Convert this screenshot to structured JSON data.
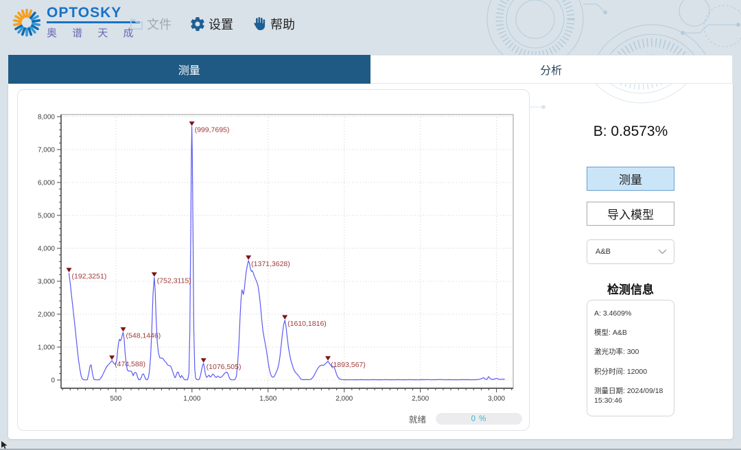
{
  "logo": {
    "brand": "OPTOSKY",
    "brand_cn": "奥 谱 天 成"
  },
  "toolbar": {
    "items": [
      {
        "label": "文件",
        "icon": "folder-icon",
        "disabled": true
      },
      {
        "label": "设置",
        "icon": "gear-icon",
        "disabled": false
      },
      {
        "label": "帮助",
        "icon": "hand-icon",
        "disabled": false
      }
    ]
  },
  "tabs": [
    {
      "label": "测量",
      "active": true
    },
    {
      "label": "分析",
      "active": false
    }
  ],
  "result": {
    "value": "B: 0.8573%"
  },
  "buttons": {
    "measure": "测量",
    "import_model": "导入模型"
  },
  "model_select": {
    "value": "A&B"
  },
  "info_panel": {
    "title": "检测信息",
    "items": [
      "A: 3.4609%",
      "模型: A&B",
      "激光功率: 300",
      "积分时间: 12000",
      "测量日期: 2024/09/18 15:30:46"
    ]
  },
  "status": {
    "ready": "就绪",
    "progress": "0 %"
  },
  "colors": {
    "accent_blue": "#1e5a83",
    "line": "#5a5af5",
    "marker": "#7e1416",
    "peak_label": "#a03a3a"
  },
  "chart_data": {
    "type": "line",
    "title": "",
    "xlabel": "",
    "ylabel": "",
    "xlim": [
      140,
      3110
    ],
    "ylim": [
      0,
      8000
    ],
    "x_ticks": [
      500,
      1000,
      1500,
      2000,
      2500,
      3000
    ],
    "y_ticks": [
      0,
      1000,
      2000,
      3000,
      4000,
      5000,
      6000,
      7000,
      8000
    ],
    "grid": true,
    "line_color": "#5a5af5",
    "marker_color": "#7e1416",
    "label_color": "#a03a3a",
    "peaks": [
      [
        192,
        3251
      ],
      [
        474,
        588
      ],
      [
        548,
        1446
      ],
      [
        752,
        3115
      ],
      [
        999,
        7695
      ],
      [
        1076,
        505
      ],
      [
        1371,
        3628
      ],
      [
        1610,
        1816
      ],
      [
        1893,
        567
      ]
    ],
    "points": [
      [
        192,
        3251
      ],
      [
        200,
        2950
      ],
      [
        210,
        2520
      ],
      [
        220,
        2100
      ],
      [
        232,
        1600
      ],
      [
        244,
        1050
      ],
      [
        255,
        600
      ],
      [
        265,
        300
      ],
      [
        272,
        120
      ],
      [
        280,
        30
      ],
      [
        290,
        8
      ],
      [
        300,
        5
      ],
      [
        312,
        8
      ],
      [
        322,
        200
      ],
      [
        330,
        430
      ],
      [
        338,
        460
      ],
      [
        346,
        200
      ],
      [
        354,
        30
      ],
      [
        365,
        8
      ],
      [
        378,
        5
      ],
      [
        392,
        10
      ],
      [
        405,
        80
      ],
      [
        418,
        200
      ],
      [
        430,
        320
      ],
      [
        442,
        420
      ],
      [
        452,
        470
      ],
      [
        462,
        520
      ],
      [
        474,
        588
      ],
      [
        482,
        540
      ],
      [
        490,
        490
      ],
      [
        498,
        470
      ],
      [
        506,
        600
      ],
      [
        512,
        900
      ],
      [
        518,
        1150
      ],
      [
        524,
        1240
      ],
      [
        530,
        1190
      ],
      [
        537,
        1260
      ],
      [
        543,
        1380
      ],
      [
        548,
        1446
      ],
      [
        554,
        1260
      ],
      [
        560,
        850
      ],
      [
        568,
        480
      ],
      [
        576,
        300
      ],
      [
        584,
        270
      ],
      [
        592,
        275
      ],
      [
        600,
        268
      ],
      [
        608,
        210
      ],
      [
        614,
        130
      ],
      [
        620,
        210
      ],
      [
        628,
        235
      ],
      [
        636,
        200
      ],
      [
        643,
        80
      ],
      [
        650,
        15
      ],
      [
        658,
        8
      ],
      [
        666,
        60
      ],
      [
        674,
        170
      ],
      [
        682,
        185
      ],
      [
        690,
        90
      ],
      [
        698,
        15
      ],
      [
        706,
        10
      ],
      [
        714,
        80
      ],
      [
        720,
        250
      ],
      [
        728,
        700
      ],
      [
        736,
        1500
      ],
      [
        744,
        2600
      ],
      [
        752,
        3115
      ],
      [
        758,
        2750
      ],
      [
        764,
        1900
      ],
      [
        772,
        1150
      ],
      [
        780,
        820
      ],
      [
        788,
        680
      ],
      [
        796,
        665
      ],
      [
        804,
        668
      ],
      [
        812,
        640
      ],
      [
        820,
        575
      ],
      [
        828,
        545
      ],
      [
        836,
        490
      ],
      [
        844,
        445
      ],
      [
        852,
        435
      ],
      [
        860,
        420
      ],
      [
        868,
        330
      ],
      [
        876,
        220
      ],
      [
        884,
        110
      ],
      [
        890,
        70
      ],
      [
        896,
        140
      ],
      [
        904,
        240
      ],
      [
        910,
        235
      ],
      [
        918,
        120
      ],
      [
        926,
        70
      ],
      [
        932,
        140
      ],
      [
        940,
        90
      ],
      [
        948,
        20
      ],
      [
        956,
        8
      ],
      [
        964,
        6
      ],
      [
        972,
        15
      ],
      [
        980,
        200
      ],
      [
        986,
        1500
      ],
      [
        992,
        4500
      ],
      [
        996,
        6800
      ],
      [
        999,
        7695
      ],
      [
        1002,
        6800
      ],
      [
        1007,
        4300
      ],
      [
        1012,
        1500
      ],
      [
        1018,
        350
      ],
      [
        1024,
        60
      ],
      [
        1032,
        12
      ],
      [
        1040,
        8
      ],
      [
        1048,
        25
      ],
      [
        1056,
        140
      ],
      [
        1064,
        330
      ],
      [
        1070,
        450
      ],
      [
        1076,
        505
      ],
      [
        1082,
        380
      ],
      [
        1088,
        180
      ],
      [
        1096,
        80
      ],
      [
        1104,
        110
      ],
      [
        1112,
        150
      ],
      [
        1120,
        90
      ],
      [
        1128,
        120
      ],
      [
        1136,
        180
      ],
      [
        1144,
        160
      ],
      [
        1152,
        95
      ],
      [
        1160,
        75
      ],
      [
        1168,
        120
      ],
      [
        1176,
        105
      ],
      [
        1184,
        70
      ],
      [
        1192,
        90
      ],
      [
        1200,
        120
      ],
      [
        1210,
        180
      ],
      [
        1220,
        225
      ],
      [
        1230,
        240
      ],
      [
        1238,
        170
      ],
      [
        1246,
        60
      ],
      [
        1254,
        12
      ],
      [
        1262,
        6
      ],
      [
        1272,
        6
      ],
      [
        1282,
        15
      ],
      [
        1292,
        120
      ],
      [
        1300,
        500
      ],
      [
        1308,
        1100
      ],
      [
        1316,
        1900
      ],
      [
        1322,
        2450
      ],
      [
        1328,
        2740
      ],
      [
        1333,
        2680
      ],
      [
        1338,
        2600
      ],
      [
        1344,
        2780
      ],
      [
        1350,
        3050
      ],
      [
        1356,
        3280
      ],
      [
        1363,
        3470
      ],
      [
        1371,
        3628
      ],
      [
        1378,
        3540
      ],
      [
        1384,
        3380
      ],
      [
        1390,
        3300
      ],
      [
        1396,
        3320
      ],
      [
        1402,
        3260
      ],
      [
        1410,
        3150
      ],
      [
        1418,
        3060
      ],
      [
        1426,
        2980
      ],
      [
        1434,
        2860
      ],
      [
        1442,
        2600
      ],
      [
        1450,
        2250
      ],
      [
        1458,
        1850
      ],
      [
        1466,
        1500
      ],
      [
        1474,
        1280
      ],
      [
        1482,
        1080
      ],
      [
        1490,
        880
      ],
      [
        1498,
        620
      ],
      [
        1506,
        380
      ],
      [
        1514,
        210
      ],
      [
        1522,
        120
      ],
      [
        1530,
        85
      ],
      [
        1538,
        95
      ],
      [
        1546,
        160
      ],
      [
        1554,
        240
      ],
      [
        1562,
        330
      ],
      [
        1570,
        480
      ],
      [
        1578,
        720
      ],
      [
        1586,
        1050
      ],
      [
        1594,
        1400
      ],
      [
        1602,
        1680
      ],
      [
        1610,
        1816
      ],
      [
        1618,
        1620
      ],
      [
        1626,
        1280
      ],
      [
        1634,
        980
      ],
      [
        1642,
        760
      ],
      [
        1650,
        600
      ],
      [
        1658,
        470
      ],
      [
        1666,
        350
      ],
      [
        1674,
        270
      ],
      [
        1682,
        220
      ],
      [
        1690,
        180
      ],
      [
        1698,
        140
      ],
      [
        1706,
        90
      ],
      [
        1714,
        40
      ],
      [
        1722,
        18
      ],
      [
        1732,
        10
      ],
      [
        1742,
        12
      ],
      [
        1752,
        14
      ],
      [
        1762,
        10
      ],
      [
        1772,
        14
      ],
      [
        1782,
        25
      ],
      [
        1792,
        70
      ],
      [
        1802,
        140
      ],
      [
        1812,
        230
      ],
      [
        1822,
        320
      ],
      [
        1832,
        390
      ],
      [
        1842,
        435
      ],
      [
        1852,
        455
      ],
      [
        1862,
        445
      ],
      [
        1872,
        475
      ],
      [
        1882,
        520
      ],
      [
        1893,
        567
      ],
      [
        1902,
        510
      ],
      [
        1910,
        455
      ],
      [
        1918,
        425
      ],
      [
        1926,
        408
      ],
      [
        1934,
        390
      ],
      [
        1942,
        290
      ],
      [
        1950,
        170
      ],
      [
        1958,
        90
      ],
      [
        1966,
        45
      ],
      [
        1974,
        25
      ],
      [
        1984,
        15
      ],
      [
        1996,
        10
      ],
      [
        2010,
        8
      ],
      [
        2030,
        10
      ],
      [
        2050,
        7
      ],
      [
        2070,
        11
      ],
      [
        2090,
        8
      ],
      [
        2110,
        12
      ],
      [
        2130,
        8
      ],
      [
        2150,
        10
      ],
      [
        2170,
        9
      ],
      [
        2190,
        12
      ],
      [
        2210,
        8
      ],
      [
        2230,
        11
      ],
      [
        2250,
        9
      ],
      [
        2270,
        12
      ],
      [
        2290,
        8
      ],
      [
        2310,
        10
      ],
      [
        2330,
        9
      ],
      [
        2350,
        13
      ],
      [
        2370,
        9
      ],
      [
        2390,
        11
      ],
      [
        2410,
        8
      ],
      [
        2430,
        12
      ],
      [
        2450,
        9
      ],
      [
        2470,
        11
      ],
      [
        2490,
        8
      ],
      [
        2510,
        12
      ],
      [
        2530,
        10
      ],
      [
        2550,
        14
      ],
      [
        2570,
        9
      ],
      [
        2590,
        11
      ],
      [
        2610,
        10
      ],
      [
        2630,
        16
      ],
      [
        2650,
        11
      ],
      [
        2670,
        9
      ],
      [
        2690,
        13
      ],
      [
        2710,
        9
      ],
      [
        2730,
        11
      ],
      [
        2750,
        9
      ],
      [
        2770,
        13
      ],
      [
        2790,
        10
      ],
      [
        2810,
        12
      ],
      [
        2830,
        9
      ],
      [
        2850,
        11
      ],
      [
        2870,
        10
      ],
      [
        2890,
        25
      ],
      [
        2905,
        45
      ],
      [
        2915,
        75
      ],
      [
        2925,
        30
      ],
      [
        2938,
        20
      ],
      [
        2948,
        105
      ],
      [
        2958,
        45
      ],
      [
        2968,
        22
      ],
      [
        2980,
        18
      ],
      [
        2992,
        40
      ],
      [
        3002,
        55
      ],
      [
        3012,
        25
      ],
      [
        3025,
        18
      ],
      [
        3040,
        28
      ],
      [
        3055,
        20
      ]
    ]
  }
}
